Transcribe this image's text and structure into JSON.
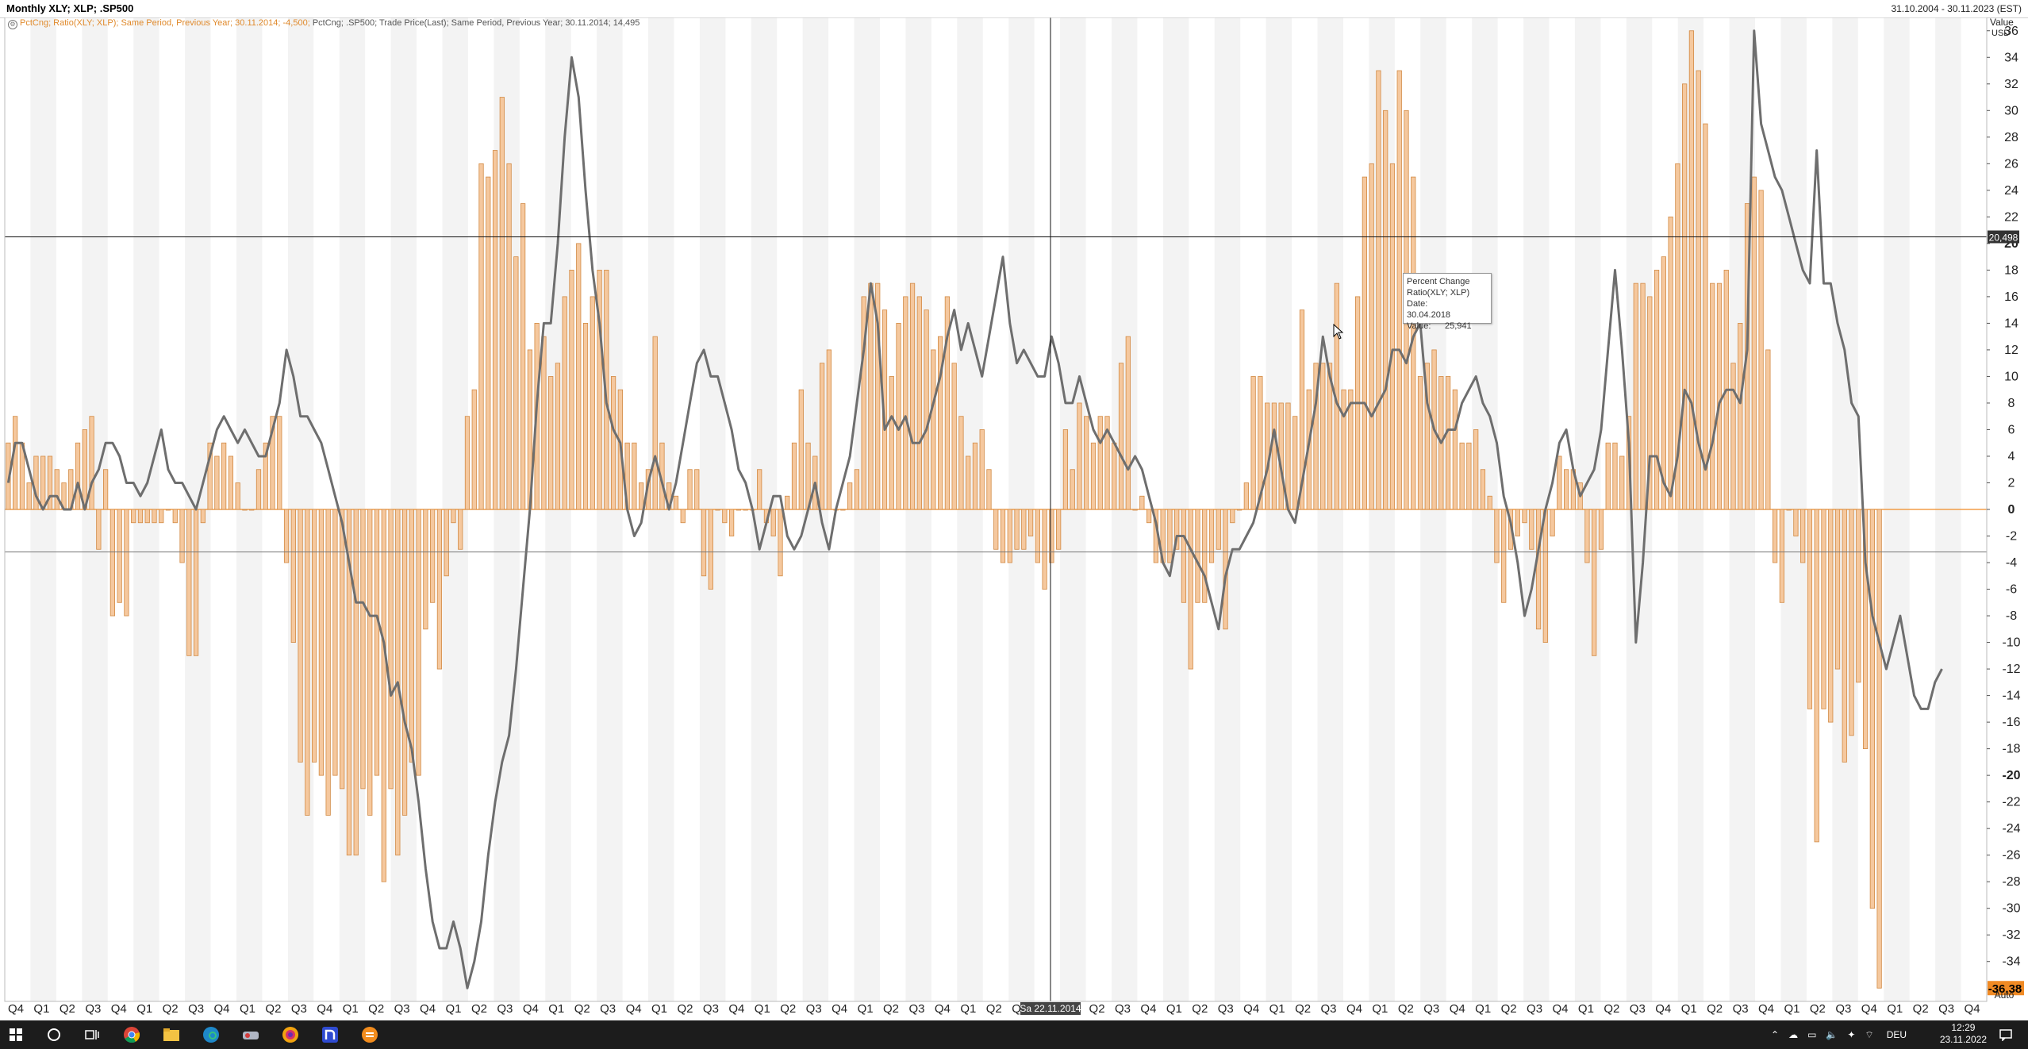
{
  "window": {
    "title": "Monthly XLY; XLP; .SP500",
    "date_range": "31.10.2004 - 30.11.2023 (EST)"
  },
  "legend": {
    "series1": "PctCng; Ratio(XLY; XLP); Same Period, Previous Year; 30.11.2014; -4,500;",
    "series2": "PctCng; .SP500; Trade Price(Last); Same Period, Previous Year; 30.11.2014; 14,495"
  },
  "tooltip": {
    "title": "Percent Change",
    "subtitle": "Ratio(XLY; XLP)",
    "date_label": "Date:",
    "date": "30.04.2018",
    "value_label": "Value:",
    "value": "25,941"
  },
  "axis": {
    "header_value": "Value",
    "header_unit": "USD",
    "footer": "Auto",
    "last_value": "-36,38",
    "crosshair_value": "20,498",
    "crosshair_date": "Sa 22.11.2014"
  },
  "colors": {
    "bar_fill": "#f5c89e",
    "bar_stroke": "#d28a44",
    "line": "#6e6e6e",
    "zero_line": "#f08a24",
    "last_value_bg": "#f08a24",
    "band": "#f3f3f3"
  },
  "taskbar": {
    "icons": [
      "windows-icon",
      "search-icon",
      "task-view-icon",
      "chrome-icon",
      "file-explorer-icon",
      "edge-icon",
      "app-icon",
      "photoshop-icon",
      "app-n-icon",
      "app-orange-icon"
    ],
    "language": "DEU",
    "time": "12:29",
    "date": "23.11.2022"
  },
  "chart_data": {
    "type": "bar",
    "ylim": [
      -37,
      37
    ],
    "yticks": [
      36,
      34,
      32,
      30,
      28,
      26,
      24,
      22,
      20,
      18,
      16,
      14,
      12,
      10,
      8,
      6,
      4,
      2,
      0,
      -2,
      -4,
      -6,
      -8,
      -10,
      -12,
      -14,
      -16,
      -18,
      -20,
      -22,
      -24,
      -26,
      -28,
      -30,
      -32,
      -34
    ],
    "x_start": "2004-10",
    "x_end": "2023-11",
    "quarter_labels": [
      "Q4",
      "Q1",
      "Q2",
      "Q3",
      "Q4",
      "Q1",
      "Q2",
      "Q3",
      "Q4",
      "Q1",
      "Q2",
      "Q3",
      "Q4",
      "Q1",
      "Q2",
      "Q3",
      "Q4",
      "Q1",
      "Q2",
      "Q3",
      "Q4",
      "Q1",
      "Q2",
      "Q3",
      "Q4",
      "Q1",
      "Q2",
      "Q3",
      "Q4",
      "Q1",
      "Q2",
      "Q3",
      "Q4",
      "Q1",
      "Q2",
      "Q3",
      "Q4",
      "Q1",
      "Q2",
      "Q3",
      "Q4",
      "Q1",
      "Q2",
      "Q3",
      "Q4",
      "Q1",
      "Q2",
      "Q3",
      "Q4",
      "Q1",
      "Q2",
      "Q3",
      "Q4",
      "Q1",
      "Q2",
      "Q3",
      "Q4",
      "Q1",
      "Q2",
      "Q3",
      "Q4",
      "Q1",
      "Q2",
      "Q3",
      "Q4",
      "Q1",
      "Q2",
      "Q3",
      "Q4",
      "Q1",
      "Q2",
      "Q3",
      "Q4",
      "Q1",
      "Q2",
      "Q3",
      "Q4"
    ],
    "series": [
      {
        "name": "PctCng; Ratio(XLY; XLP)",
        "kind": "bar",
        "values": [
          5,
          7,
          5,
          2,
          4,
          4,
          4,
          3,
          2,
          3,
          5,
          6,
          7,
          -3,
          3,
          -8,
          -7,
          -8,
          -1,
          -1,
          -1,
          -1,
          -1,
          0,
          -1,
          -4,
          -11,
          -11,
          -1,
          5,
          4,
          5,
          4,
          2,
          0,
          0,
          3,
          5,
          7,
          7,
          -4,
          -10,
          -19,
          -23,
          -19,
          -20,
          -23,
          -20,
          -21,
          -26,
          -26,
          -21,
          -23,
          -20,
          -28,
          -21,
          -26,
          -23,
          -19,
          -20,
          -9,
          -7,
          -12,
          -5,
          -1,
          -3,
          7,
          9,
          26,
          25,
          27,
          31,
          26,
          19,
          23,
          12,
          14,
          13,
          10,
          11,
          16,
          18,
          20,
          14,
          16,
          18,
          18,
          10,
          9,
          5,
          5,
          2,
          3,
          13,
          5,
          2,
          1,
          -1,
          3,
          3,
          -5,
          -6,
          0,
          -1,
          -2,
          0,
          0,
          0,
          3,
          -1,
          -2,
          -5,
          1,
          5,
          9,
          5,
          4,
          11,
          12,
          0,
          0,
          2,
          3,
          16,
          17,
          17,
          15,
          10,
          14,
          16,
          17,
          16,
          15,
          12,
          13,
          16,
          11,
          7,
          4,
          5,
          6,
          3,
          -3,
          -4,
          -4,
          -3,
          -3,
          -2,
          -4,
          -6,
          -4,
          -3,
          6,
          3,
          8,
          7,
          5,
          7,
          7,
          5,
          11,
          13,
          0,
          1,
          -1,
          -4,
          -4,
          -4,
          -3,
          -7,
          -12,
          -7,
          -7,
          -4,
          -3,
          -9,
          -1,
          0,
          2,
          10,
          10,
          8,
          8,
          8,
          8,
          7,
          15,
          9,
          11,
          11,
          11,
          17,
          9,
          9,
          16,
          25,
          26,
          33,
          30,
          26,
          33,
          30,
          25,
          10,
          11,
          12,
          10,
          10,
          9,
          5,
          5,
          6,
          3,
          1,
          -4,
          -7,
          -3,
          -2,
          -1,
          -3,
          -9,
          -10,
          -2,
          4,
          3,
          3,
          2,
          -4,
          -11,
          -3,
          5,
          5,
          4,
          7,
          17,
          17,
          16,
          18,
          19,
          22,
          26,
          32,
          36,
          33,
          29,
          17,
          17,
          18,
          11,
          14,
          23,
          25,
          24,
          12,
          -4,
          -7,
          0,
          -2,
          -4,
          -15,
          -25,
          -15,
          -16,
          -12,
          -19,
          -17,
          -13,
          -18,
          -30,
          -36
        ]
      },
      {
        "name": "PctCng; .SP500",
        "kind": "line",
        "values": [
          2,
          5,
          5,
          3,
          1,
          0,
          1,
          1,
          0,
          0,
          2,
          0,
          2,
          3,
          5,
          5,
          4,
          2,
          2,
          1,
          2,
          4,
          6,
          3,
          2,
          2,
          1,
          0,
          2,
          4,
          6,
          7,
          6,
          5,
          6,
          5,
          4,
          4,
          6,
          8,
          12,
          10,
          7,
          7,
          6,
          5,
          3,
          1,
          -1,
          -4,
          -7,
          -7,
          -8,
          -8,
          -10,
          -14,
          -13,
          -16,
          -18,
          -22,
          -27,
          -31,
          -33,
          -33,
          -31,
          -33,
          -36,
          -34,
          -31,
          -26,
          -22,
          -19,
          -17,
          -12,
          -6,
          0,
          8,
          14,
          14,
          20,
          28,
          34,
          31,
          24,
          18,
          14,
          8,
          6,
          5,
          0,
          -2,
          -1,
          2,
          4,
          2,
          0,
          2,
          5,
          8,
          11,
          12,
          10,
          10,
          8,
          6,
          3,
          2,
          0,
          -3,
          -1,
          1,
          1,
          -2,
          -3,
          -2,
          0,
          2,
          -1,
          -3,
          0,
          2,
          4,
          8,
          12,
          17,
          14,
          6,
          7,
          6,
          7,
          5,
          5,
          6,
          8,
          10,
          13,
          15,
          12,
          14,
          12,
          10,
          13,
          16,
          19,
          14,
          11,
          12,
          11,
          10,
          10,
          13,
          11,
          8,
          8,
          10,
          8,
          6,
          5,
          6,
          5,
          4,
          3,
          4,
          3,
          1,
          -1,
          -4,
          -5,
          -2,
          -2,
          -3,
          -4,
          -5,
          -7,
          -9,
          -5,
          -3,
          -3,
          -2,
          -1,
          1,
          3,
          6,
          3,
          0,
          -1,
          2,
          5,
          8,
          13,
          10,
          8,
          7,
          8,
          8,
          8,
          7,
          8,
          9,
          12,
          12,
          11,
          13,
          14,
          8,
          6,
          5,
          6,
          6,
          8,
          9,
          10,
          8,
          7,
          5,
          1,
          -1,
          -4,
          -8,
          -6,
          -3,
          0,
          2,
          5,
          6,
          3,
          1,
          2,
          3,
          6,
          12,
          18,
          12,
          5,
          -10,
          -4,
          4,
          4,
          2,
          1,
          4,
          9,
          8,
          5,
          3,
          5,
          8,
          9,
          9,
          8,
          12,
          36,
          29,
          27,
          25,
          24,
          22,
          20,
          18,
          17,
          27,
          17,
          17,
          14,
          12,
          8,
          7,
          -4,
          -8,
          -10,
          -12,
          -10,
          -8,
          -11,
          -14,
          -15,
          -15,
          -13,
          -12
        ]
      }
    ]
  }
}
